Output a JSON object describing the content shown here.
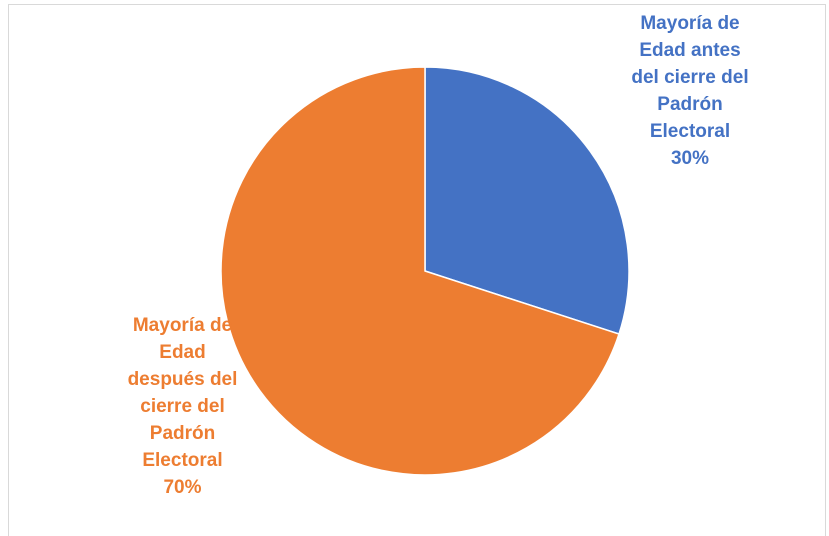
{
  "chart_data": {
    "type": "pie",
    "title": "",
    "start_angle_deg": 0,
    "direction": "clockwise",
    "slices": [
      {
        "label_lines": [
          "Mayoría de",
          "Edad antes",
          "del cierre del",
          "Padrón",
          "Electoral"
        ],
        "value": 30,
        "value_label": "30%",
        "color": "#4472C4"
      },
      {
        "label_lines": [
          "Mayoría de",
          "Edad",
          "después del",
          "cierre del",
          "Padrón",
          "Electoral"
        ],
        "value": 70,
        "value_label": "70%",
        "color": "#ED7D31"
      }
    ],
    "legend": "none",
    "border_color": "#D9D9D9",
    "slice_edge_color": "#FFFFFF"
  }
}
